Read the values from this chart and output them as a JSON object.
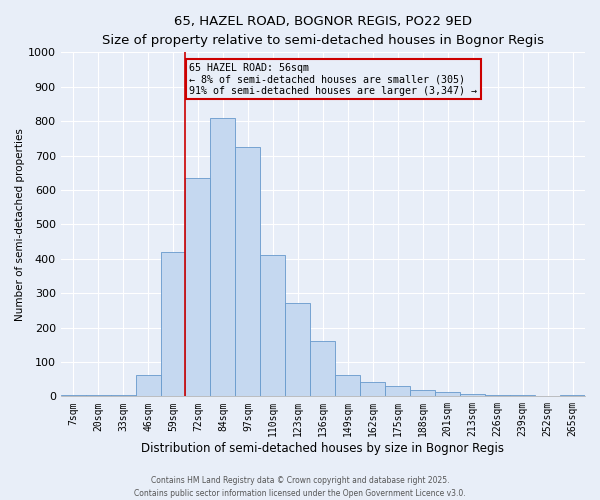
{
  "title1": "65, HAZEL ROAD, BOGNOR REGIS, PO22 9ED",
  "title2": "Size of property relative to semi-detached houses in Bognor Regis",
  "xlabel": "Distribution of semi-detached houses by size in Bognor Regis",
  "ylabel": "Number of semi-detached properties",
  "categories": [
    "7sqm",
    "20sqm",
    "33sqm",
    "46sqm",
    "59sqm",
    "72sqm",
    "84sqm",
    "97sqm",
    "110sqm",
    "123sqm",
    "136sqm",
    "149sqm",
    "162sqm",
    "175sqm",
    "188sqm",
    "201sqm",
    "213sqm",
    "226sqm",
    "239sqm",
    "252sqm",
    "265sqm"
  ],
  "values": [
    3,
    3,
    3,
    63,
    420,
    635,
    810,
    725,
    410,
    270,
    160,
    63,
    42,
    30,
    17,
    13,
    7,
    5,
    4,
    2,
    4
  ],
  "bar_color": "#c5d8f0",
  "bar_edge_color": "#6699cc",
  "vline_x_index": 4.5,
  "vline_color": "#cc0000",
  "annotation_title": "65 HAZEL ROAD: 56sqm",
  "annotation_line1": "← 8% of semi-detached houses are smaller (305)",
  "annotation_line2": "91% of semi-detached houses are larger (3,347) →",
  "annotation_box_color": "#cc0000",
  "annotation_bg": "#e8eef8",
  "ylim": [
    0,
    1000
  ],
  "yticks": [
    0,
    100,
    200,
    300,
    400,
    500,
    600,
    700,
    800,
    900,
    1000
  ],
  "footnote1": "Contains HM Land Registry data © Crown copyright and database right 2025.",
  "footnote2": "Contains public sector information licensed under the Open Government Licence v3.0.",
  "bg_color": "#e8eef8",
  "grid_color": "#d0d8e8",
  "title_fontsize": 9.5,
  "subtitle_fontsize": 8.5
}
